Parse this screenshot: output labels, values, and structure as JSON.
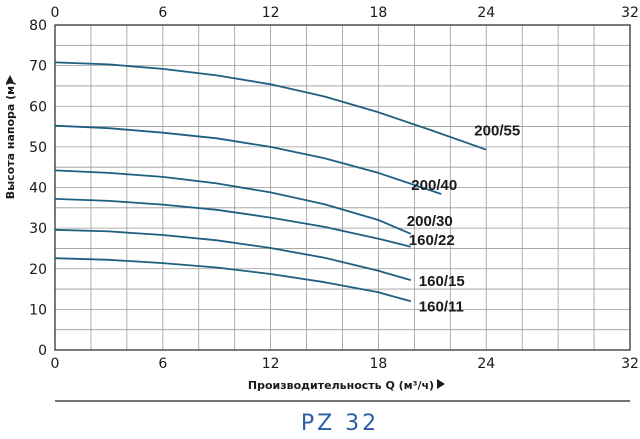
{
  "chart_data": {
    "type": "line",
    "title": "PZ 32",
    "xlabel": "Производительность Q (м³/ч)",
    "ylabel": "Высота напора (м)",
    "xlim": [
      0,
      32
    ],
    "ylim": [
      0,
      80
    ],
    "x_ticks": [
      0,
      6,
      12,
      18,
      24,
      32
    ],
    "y_ticks": [
      0,
      10,
      20,
      30,
      40,
      50,
      60,
      70,
      80
    ],
    "x_ticks_top": [
      0,
      6,
      12,
      18,
      24,
      32
    ],
    "grid": true,
    "line_color": "#1f5f82",
    "title_color": "#2a5fa8",
    "series": [
      {
        "name": "200/55",
        "x": [
          0,
          3,
          6,
          9,
          12,
          15,
          18,
          21,
          24
        ],
        "y": [
          70.8,
          70.3,
          69.2,
          67.6,
          65.4,
          62.4,
          58.5,
          54.0,
          49.3
        ]
      },
      {
        "name": "200/40",
        "x": [
          0,
          3,
          6,
          9,
          12,
          15,
          18,
          21.5
        ],
        "y": [
          55.2,
          54.6,
          53.5,
          52.1,
          50.0,
          47.2,
          43.6,
          38.4
        ]
      },
      {
        "name": "200/30",
        "x": [
          0,
          3,
          6,
          9,
          12,
          15,
          18,
          19.8
        ],
        "y": [
          44.2,
          43.6,
          42.6,
          41.0,
          38.8,
          35.9,
          32.0,
          28.6
        ]
      },
      {
        "name": "160/22",
        "x": [
          0,
          3,
          6,
          9,
          12,
          15,
          18,
          19.8
        ],
        "y": [
          37.2,
          36.7,
          35.8,
          34.5,
          32.6,
          30.3,
          27.4,
          25.4
        ]
      },
      {
        "name": "160/15",
        "x": [
          0,
          3,
          6,
          9,
          12,
          15,
          18,
          19.8
        ],
        "y": [
          29.6,
          29.2,
          28.3,
          27.0,
          25.1,
          22.7,
          19.5,
          17.2
        ]
      },
      {
        "name": "160/11",
        "x": [
          0,
          3,
          6,
          9,
          12,
          15,
          18,
          19.8
        ],
        "y": [
          22.6,
          22.2,
          21.4,
          20.3,
          18.7,
          16.7,
          14.2,
          12.0
        ]
      }
    ]
  }
}
